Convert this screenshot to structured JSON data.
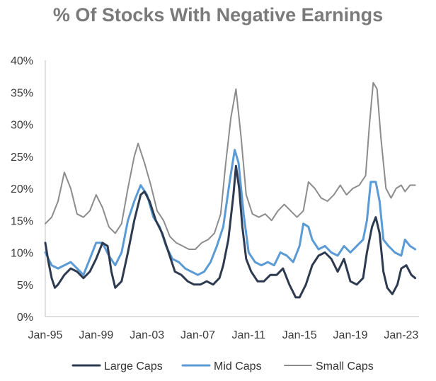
{
  "chart_data": {
    "type": "line",
    "title": "% Of Stocks With Negative Earnings",
    "xlabel": "",
    "ylabel": "",
    "x_ticks": [
      "Jan-95",
      "Jan-99",
      "Jan-03",
      "Jan-07",
      "Jan-11",
      "Jan-15",
      "Jan-19",
      "Jan-23"
    ],
    "y_ticks": [
      "0%",
      "5%",
      "10%",
      "15%",
      "20%",
      "25%",
      "30%",
      "35%",
      "40%"
    ],
    "xlim": [
      1995.0,
      2024.4
    ],
    "ylim": [
      0,
      40
    ],
    "grid": false,
    "legend_position": "bottom",
    "series": [
      {
        "name": "Large Caps",
        "color": "#2d3a4f",
        "points": [
          [
            1995.0,
            11.5
          ],
          [
            1995.25,
            8.5
          ],
          [
            1995.5,
            6.0
          ],
          [
            1995.75,
            4.5
          ],
          [
            1996.0,
            5.0
          ],
          [
            1996.5,
            6.5
          ],
          [
            1997.0,
            7.5
          ],
          [
            1997.5,
            7.0
          ],
          [
            1998.0,
            6.0
          ],
          [
            1998.5,
            7.0
          ],
          [
            1999.0,
            9.0
          ],
          [
            1999.5,
            11.5
          ],
          [
            1999.9,
            11.0
          ],
          [
            2000.2,
            7.0
          ],
          [
            2000.5,
            4.5
          ],
          [
            2001.0,
            5.5
          ],
          [
            2001.5,
            10.0
          ],
          [
            2002.0,
            15.0
          ],
          [
            2002.5,
            19.0
          ],
          [
            2002.8,
            19.5
          ],
          [
            2003.2,
            18.0
          ],
          [
            2003.7,
            15.0
          ],
          [
            2004.2,
            13.0
          ],
          [
            2004.7,
            10.0
          ],
          [
            2005.2,
            7.0
          ],
          [
            2005.7,
            6.5
          ],
          [
            2006.2,
            5.5
          ],
          [
            2006.7,
            5.0
          ],
          [
            2007.2,
            5.0
          ],
          [
            2007.7,
            5.5
          ],
          [
            2008.2,
            5.0
          ],
          [
            2008.7,
            6.0
          ],
          [
            2009.0,
            8.0
          ],
          [
            2009.4,
            12.0
          ],
          [
            2009.8,
            19.0
          ],
          [
            2010.0,
            23.5
          ],
          [
            2010.25,
            20.0
          ],
          [
            2010.5,
            14.0
          ],
          [
            2010.8,
            9.0
          ],
          [
            2011.2,
            7.0
          ],
          [
            2011.7,
            5.5
          ],
          [
            2012.2,
            5.5
          ],
          [
            2012.7,
            6.5
          ],
          [
            2013.2,
            6.5
          ],
          [
            2013.7,
            7.5
          ],
          [
            2014.2,
            5.0
          ],
          [
            2014.7,
            3.0
          ],
          [
            2015.0,
            3.0
          ],
          [
            2015.5,
            5.0
          ],
          [
            2016.0,
            8.0
          ],
          [
            2016.5,
            9.5
          ],
          [
            2017.0,
            10.0
          ],
          [
            2017.5,
            9.0
          ],
          [
            2018.0,
            7.0
          ],
          [
            2018.5,
            9.0
          ],
          [
            2019.0,
            5.5
          ],
          [
            2019.5,
            5.0
          ],
          [
            2020.0,
            6.0
          ],
          [
            2020.3,
            10.0
          ],
          [
            2020.7,
            14.0
          ],
          [
            2021.0,
            15.5
          ],
          [
            2021.3,
            13.0
          ],
          [
            2021.6,
            7.0
          ],
          [
            2021.9,
            4.5
          ],
          [
            2022.3,
            3.5
          ],
          [
            2022.7,
            5.0
          ],
          [
            2023.0,
            7.5
          ],
          [
            2023.4,
            8.0
          ],
          [
            2023.8,
            6.5
          ],
          [
            2024.1,
            6.0
          ]
        ]
      },
      {
        "name": "Mid Caps",
        "color": "#5b9bd5",
        "points": [
          [
            1995.0,
            10.0
          ],
          [
            1995.5,
            8.0
          ],
          [
            1996.0,
            7.5
          ],
          [
            1996.5,
            8.0
          ],
          [
            1997.0,
            8.5
          ],
          [
            1997.5,
            7.5
          ],
          [
            1998.0,
            6.5
          ],
          [
            1998.5,
            9.0
          ],
          [
            1999.0,
            11.5
          ],
          [
            1999.5,
            11.5
          ],
          [
            2000.0,
            9.5
          ],
          [
            2000.5,
            8.0
          ],
          [
            2001.0,
            10.0
          ],
          [
            2001.5,
            15.0
          ],
          [
            2002.0,
            18.0
          ],
          [
            2002.5,
            20.5
          ],
          [
            2003.0,
            19.0
          ],
          [
            2003.5,
            15.5
          ],
          [
            2004.0,
            14.0
          ],
          [
            2004.5,
            11.0
          ],
          [
            2005.0,
            9.0
          ],
          [
            2005.5,
            8.5
          ],
          [
            2006.0,
            7.5
          ],
          [
            2006.5,
            7.0
          ],
          [
            2007.0,
            6.5
          ],
          [
            2007.5,
            7.0
          ],
          [
            2008.0,
            8.5
          ],
          [
            2008.5,
            11.0
          ],
          [
            2009.0,
            14.0
          ],
          [
            2009.5,
            21.0
          ],
          [
            2009.9,
            26.0
          ],
          [
            2010.2,
            24.0
          ],
          [
            2010.6,
            16.0
          ],
          [
            2011.0,
            10.0
          ],
          [
            2011.5,
            8.5
          ],
          [
            2012.0,
            8.0
          ],
          [
            2012.5,
            8.5
          ],
          [
            2013.0,
            8.0
          ],
          [
            2013.5,
            10.0
          ],
          [
            2014.0,
            9.5
          ],
          [
            2014.5,
            8.5
          ],
          [
            2015.0,
            11.0
          ],
          [
            2015.3,
            14.5
          ],
          [
            2015.7,
            14.0
          ],
          [
            2016.0,
            12.0
          ],
          [
            2016.5,
            10.5
          ],
          [
            2017.0,
            11.0
          ],
          [
            2017.5,
            10.0
          ],
          [
            2018.0,
            9.5
          ],
          [
            2018.5,
            11.0
          ],
          [
            2019.0,
            10.0
          ],
          [
            2019.5,
            11.0
          ],
          [
            2020.0,
            12.0
          ],
          [
            2020.3,
            15.0
          ],
          [
            2020.6,
            21.0
          ],
          [
            2021.0,
            21.0
          ],
          [
            2021.3,
            18.0
          ],
          [
            2021.6,
            12.0
          ],
          [
            2022.0,
            11.0
          ],
          [
            2022.5,
            10.0
          ],
          [
            2023.0,
            9.5
          ],
          [
            2023.3,
            12.0
          ],
          [
            2023.7,
            11.0
          ],
          [
            2024.1,
            10.5
          ]
        ]
      },
      {
        "name": "Small Caps",
        "color": "#8c8c8c",
        "points": [
          [
            1995.0,
            14.5
          ],
          [
            1995.5,
            15.5
          ],
          [
            1996.0,
            18.0
          ],
          [
            1996.5,
            22.5
          ],
          [
            1997.0,
            20.0
          ],
          [
            1997.5,
            16.0
          ],
          [
            1998.0,
            15.5
          ],
          [
            1998.5,
            16.5
          ],
          [
            1999.0,
            19.0
          ],
          [
            1999.5,
            17.0
          ],
          [
            2000.0,
            14.0
          ],
          [
            2000.5,
            13.0
          ],
          [
            2001.0,
            14.5
          ],
          [
            2001.5,
            20.0
          ],
          [
            2002.0,
            25.0
          ],
          [
            2002.3,
            27.0
          ],
          [
            2002.8,
            24.0
          ],
          [
            2003.3,
            20.5
          ],
          [
            2003.8,
            16.5
          ],
          [
            2004.3,
            15.0
          ],
          [
            2004.8,
            12.5
          ],
          [
            2005.3,
            11.5
          ],
          [
            2005.8,
            11.0
          ],
          [
            2006.3,
            10.5
          ],
          [
            2006.8,
            10.5
          ],
          [
            2007.3,
            11.5
          ],
          [
            2007.8,
            12.0
          ],
          [
            2008.3,
            13.0
          ],
          [
            2008.8,
            16.0
          ],
          [
            2009.2,
            24.0
          ],
          [
            2009.6,
            31.0
          ],
          [
            2010.0,
            35.5
          ],
          [
            2010.4,
            28.0
          ],
          [
            2010.8,
            19.0
          ],
          [
            2011.3,
            16.0
          ],
          [
            2011.8,
            15.5
          ],
          [
            2012.3,
            16.0
          ],
          [
            2012.8,
            15.0
          ],
          [
            2013.3,
            16.5
          ],
          [
            2013.8,
            17.5
          ],
          [
            2014.3,
            16.5
          ],
          [
            2014.8,
            15.5
          ],
          [
            2015.3,
            16.5
          ],
          [
            2015.7,
            21.0
          ],
          [
            2016.2,
            20.0
          ],
          [
            2016.7,
            18.5
          ],
          [
            2017.2,
            18.0
          ],
          [
            2017.7,
            19.0
          ],
          [
            2018.2,
            20.5
          ],
          [
            2018.7,
            19.0
          ],
          [
            2019.2,
            20.0
          ],
          [
            2019.7,
            20.5
          ],
          [
            2020.2,
            22.0
          ],
          [
            2020.5,
            30.0
          ],
          [
            2020.8,
            36.5
          ],
          [
            2021.1,
            35.5
          ],
          [
            2021.4,
            28.0
          ],
          [
            2021.8,
            20.0
          ],
          [
            2022.2,
            18.5
          ],
          [
            2022.6,
            20.0
          ],
          [
            2023.0,
            20.5
          ],
          [
            2023.3,
            19.5
          ],
          [
            2023.7,
            20.5
          ],
          [
            2024.1,
            20.5
          ]
        ]
      }
    ]
  }
}
